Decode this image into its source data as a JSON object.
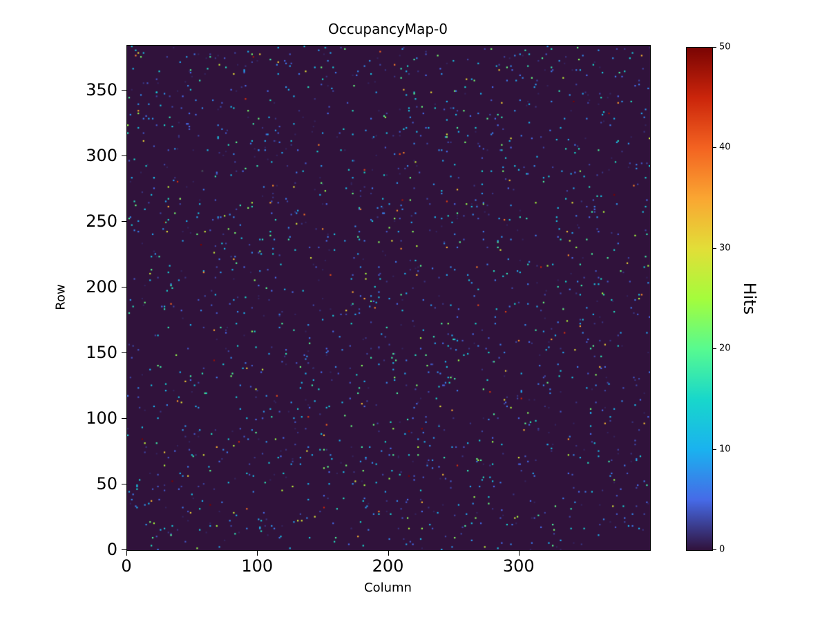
{
  "chart_data": {
    "type": "heatmap",
    "title": "OccupancyMap-0",
    "xlabel": "Column",
    "ylabel": "Row",
    "colorbar_label": "Hits",
    "grid": {
      "n_cols": 400,
      "n_rows": 384
    },
    "x_range": [
      0,
      400
    ],
    "y_range": [
      0,
      384
    ],
    "value_range": [
      0,
      50
    ],
    "x_ticks": [
      0,
      100,
      200,
      300
    ],
    "y_ticks": [
      0,
      50,
      100,
      150,
      200,
      250,
      300,
      350
    ],
    "colorbar_ticks": [
      0,
      10,
      20,
      30,
      40,
      50
    ],
    "colormap": "turbo",
    "colormap_stops": [
      {
        "t": 0.0,
        "rgb": [
          48,
          18,
          59
        ]
      },
      {
        "t": 0.1,
        "rgb": [
          70,
          106,
          231
        ]
      },
      {
        "t": 0.2,
        "rgb": [
          26,
          178,
          239
        ]
      },
      {
        "t": 0.3,
        "rgb": [
          24,
          215,
          203
        ]
      },
      {
        "t": 0.4,
        "rgb": [
          87,
          250,
          144
        ]
      },
      {
        "t": 0.5,
        "rgb": [
          164,
          252,
          60
        ]
      },
      {
        "t": 0.6,
        "rgb": [
          226,
          222,
          56
        ]
      },
      {
        "t": 0.7,
        "rgb": [
          250,
          166,
          50
        ]
      },
      {
        "t": 0.8,
        "rgb": [
          243,
          99,
          33
        ]
      },
      {
        "t": 0.9,
        "rgb": [
          203,
          37,
          11
        ]
      },
      {
        "t": 1.0,
        "rgb": [
          122,
          4,
          3
        ]
      }
    ],
    "background_value": 0,
    "data_description": "Sparse occupancy map: nearly all of the 400x384 pixel grid has 0 hits (dark purple); roughly 1-2% of pixels contain isolated random hits with values between 1 and 50, mostly low (blue/cyan dots) with occasional high values (yellow/orange/red dots).",
    "sparse_points": {
      "count": 2000,
      "seed": 42,
      "value_distribution": "exponential, mean ~10, clamped to [1, 50]"
    }
  }
}
